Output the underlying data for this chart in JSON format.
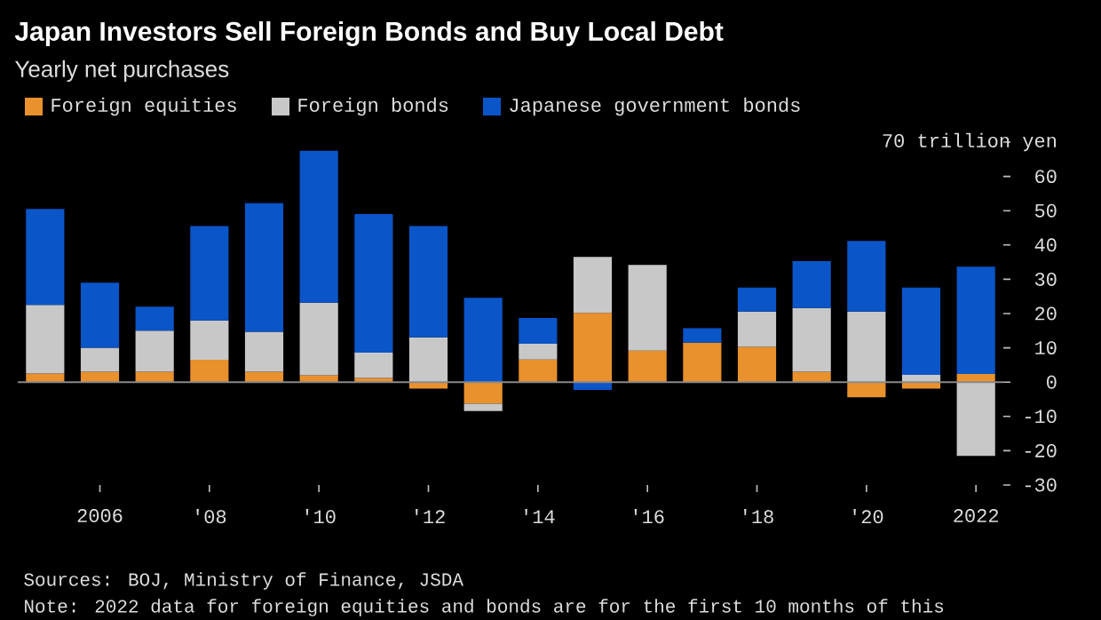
{
  "chart_data": {
    "type": "bar",
    "title": "Japan Investors Sell Foreign Bonds and Buy Local Debt",
    "subtitle": "Yearly net purchases",
    "x": [
      2005,
      2006,
      2007,
      2008,
      2009,
      2010,
      2011,
      2012,
      2013,
      2014,
      2015,
      2016,
      2017,
      2018,
      2019,
      2020,
      2021,
      2022
    ],
    "stacked": true,
    "series": [
      {
        "name": "Foreign equities",
        "color": "#e8912d",
        "values": [
          2.5,
          3,
          3,
          6.5,
          3,
          2,
          1.2,
          -1.9,
          -6.3,
          6.6,
          20.2,
          9.2,
          11.5,
          10.3,
          3,
          -4.4,
          -1.9,
          2.4
        ]
      },
      {
        "name": "Foreign bonds",
        "color": "#c8c8c8",
        "values": [
          20,
          7,
          12,
          11.5,
          11.7,
          21.2,
          7.4,
          13.1,
          -2.1,
          4.6,
          16.3,
          25,
          null,
          10.3,
          18.6,
          20.6,
          2.1,
          -21.5
        ]
      },
      {
        "name": "Japanese government bonds",
        "color": "#0a55c8",
        "values": [
          28,
          19,
          7,
          27.5,
          37.5,
          44.3,
          40.4,
          32.4,
          24.6,
          7.5,
          -2.3,
          null,
          4.2,
          7,
          13.7,
          20.6,
          25.5,
          31.3
        ]
      }
    ],
    "xlim": [
      2004.5,
      2022.5
    ],
    "xticks": [
      {
        "value": 2006,
        "label": "2006"
      },
      {
        "value": 2008,
        "label": "'08"
      },
      {
        "value": 2010,
        "label": "'10"
      },
      {
        "value": 2012,
        "label": "'12"
      },
      {
        "value": 2014,
        "label": "'14"
      },
      {
        "value": 2016,
        "label": "'16"
      },
      {
        "value": 2018,
        "label": "'18"
      },
      {
        "value": 2020,
        "label": "'20"
      },
      {
        "value": 2022,
        "label": "2022"
      }
    ],
    "ylim": [
      -30,
      70
    ],
    "yticks": [
      -30,
      -20,
      -10,
      0,
      10,
      20,
      30,
      40,
      50,
      60,
      {
        "value": 70,
        "label": "70 trillion yen"
      }
    ],
    "ref_lines": [
      {
        "axis": "y",
        "value": 0,
        "color": "#888888"
      }
    ],
    "legend": "top left",
    "grid": false,
    "annotations": [
      "Sources: BOJ, Ministry of Finance, JSDA",
      "Note: 2022 data for foreign equities and bonds are for the first 10 months of this"
    ]
  }
}
